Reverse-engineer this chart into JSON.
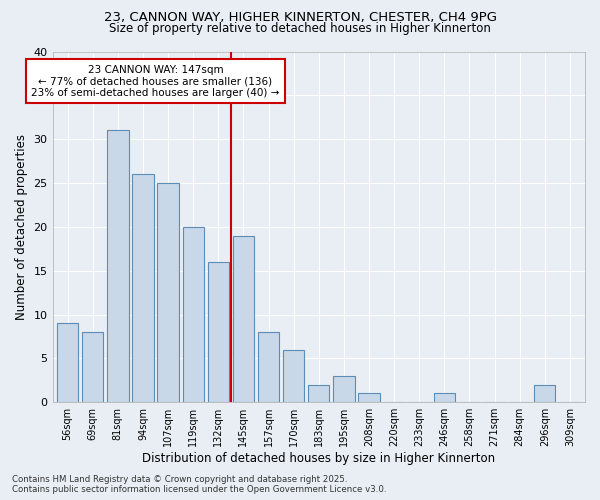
{
  "title1": "23, CANNON WAY, HIGHER KINNERTON, CHESTER, CH4 9PG",
  "title2": "Size of property relative to detached houses in Higher Kinnerton",
  "xlabel": "Distribution of detached houses by size in Higher Kinnerton",
  "ylabel": "Number of detached properties",
  "bar_labels": [
    "56sqm",
    "69sqm",
    "81sqm",
    "94sqm",
    "107sqm",
    "119sqm",
    "132sqm",
    "145sqm",
    "157sqm",
    "170sqm",
    "183sqm",
    "195sqm",
    "208sqm",
    "220sqm",
    "233sqm",
    "246sqm",
    "258sqm",
    "271sqm",
    "284sqm",
    "296sqm",
    "309sqm"
  ],
  "bar_values": [
    9,
    8,
    31,
    26,
    25,
    20,
    16,
    19,
    8,
    6,
    2,
    3,
    1,
    0,
    0,
    1,
    0,
    0,
    0,
    2,
    0
  ],
  "bar_color": "#c8d8e8",
  "bar_edgecolor": "#5b8db8",
  "vline_color": "#cc0000",
  "annotation_line1": "23 CANNON WAY: 147sqm",
  "annotation_line2": "← 77% of detached houses are smaller (136)",
  "annotation_line3": "23% of semi-detached houses are larger (40) →",
  "annotation_border_color": "#cc0000",
  "ylim": [
    0,
    40
  ],
  "yticks": [
    0,
    5,
    10,
    15,
    20,
    25,
    30,
    35,
    40
  ],
  "background_color": "#e8eef4",
  "grid_color": "#ffffff",
  "footer1": "Contains HM Land Registry data © Crown copyright and database right 2025.",
  "footer2": "Contains public sector information licensed under the Open Government Licence v3.0."
}
